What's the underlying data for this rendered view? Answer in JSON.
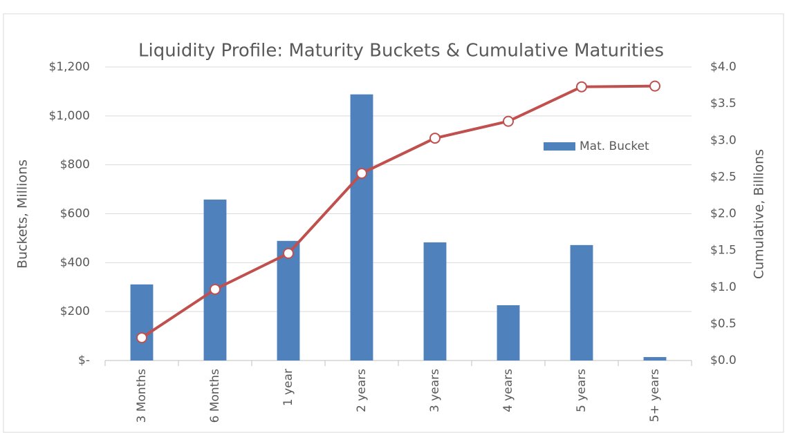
{
  "chart_data": {
    "type": "bar_line",
    "title": "Liquidity Profile: Maturity Buckets & Cumulative Maturities",
    "y_label": "Buckets, Millions",
    "y2_label": "Cumulative, Billions",
    "categories": [
      "3 Months",
      "6 Months",
      "1 year",
      "2 years",
      "3 years",
      "4 years",
      "5 years",
      "5+ years"
    ],
    "series": [
      {
        "name": "Mat. Bucket",
        "type": "bar",
        "axis": "y",
        "color": "#4f81bd",
        "values": [
          311,
          658,
          489,
          1088,
          483,
          226,
          472,
          14
        ]
      },
      {
        "type": "line",
        "axis": "y2",
        "color": "#c0504d",
        "values": [
          0.31,
          0.97,
          1.46,
          2.55,
          3.03,
          3.26,
          3.73,
          3.74
        ]
      }
    ],
    "ylim": [
      0,
      1200
    ],
    "yticks": [
      {
        "value": 0,
        "label": "$-"
      },
      {
        "value": 200,
        "label": "$200"
      },
      {
        "value": 400,
        "label": "$400"
      },
      {
        "value": 600,
        "label": "$600"
      },
      {
        "value": 800,
        "label": "$800"
      },
      {
        "value": 1000,
        "label": "$1,000"
      },
      {
        "value": 1200,
        "label": "$1,200"
      }
    ],
    "y2lim": [
      0,
      4
    ],
    "y2ticks": [
      {
        "value": 0,
        "label": "$0.0"
      },
      {
        "value": 0.5,
        "label": "$0.5"
      },
      {
        "value": 1,
        "label": "$1.0"
      },
      {
        "value": 1.5,
        "label": "$1.5"
      },
      {
        "value": 2,
        "label": "$2.0"
      },
      {
        "value": 2.5,
        "label": "$2.5"
      },
      {
        "value": 3,
        "label": "$3.0"
      },
      {
        "value": 3.5,
        "label": "$3.5"
      },
      {
        "value": 4,
        "label": "$4.0"
      }
    ],
    "grid": true
  }
}
